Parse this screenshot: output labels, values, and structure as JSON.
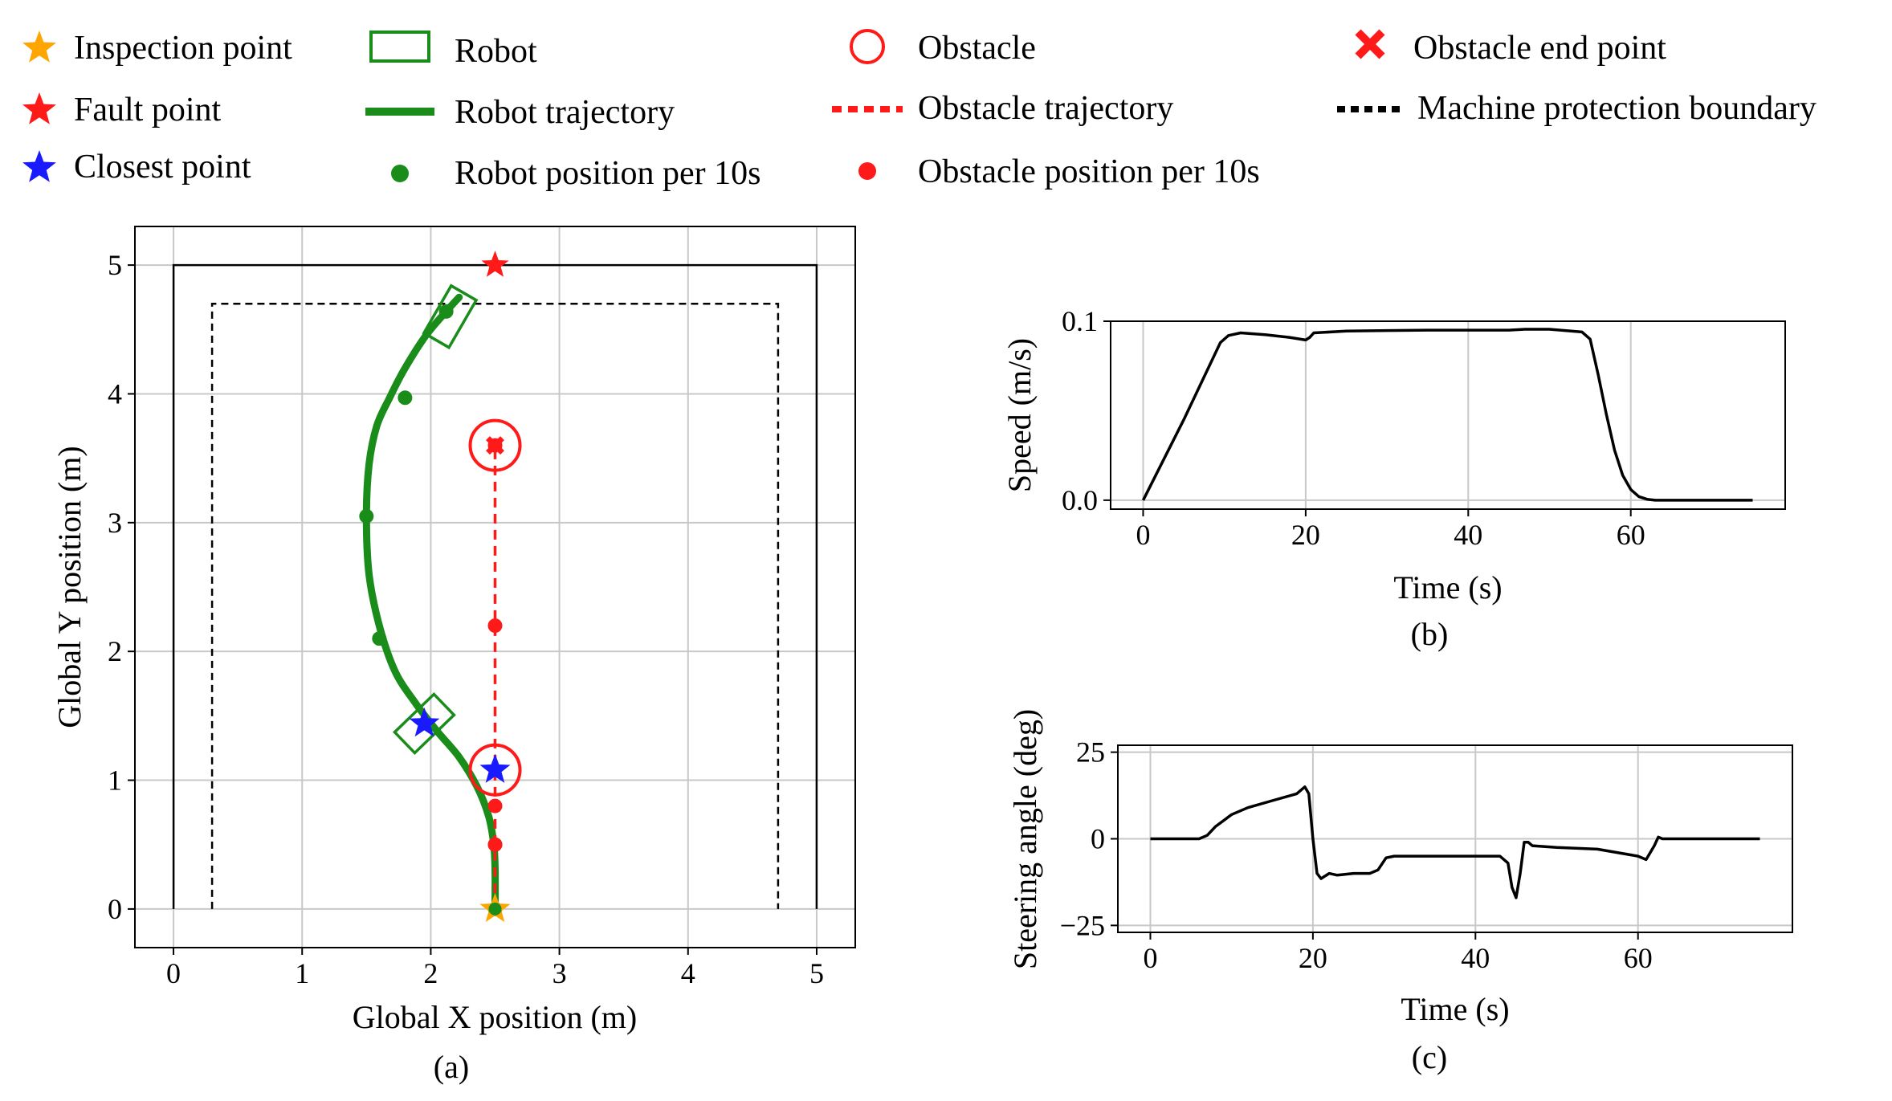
{
  "colors": {
    "robot": "#1a8c1a",
    "obstacle": "#ff1a1a",
    "inspection": "#ffa500",
    "closest": "#1a1aff",
    "fault": "#ff1a1a",
    "line": "#000000",
    "grid": "#c8c8c8"
  },
  "legend": {
    "inspection": "Inspection point",
    "fault": "Fault point",
    "closest": "Closest point",
    "robot": "Robot",
    "robot_traj": "Robot trajectory",
    "robot_pos": "Robot position per 10s",
    "obstacle": "Obstacle",
    "obstacle_traj": "Obstacle trajectory",
    "obstacle_pos": "Obstacle position per 10s",
    "obstacle_end": "Obstacle end point",
    "boundary": "Machine protection boundary"
  },
  "chart_data": [
    {
      "id": "a",
      "type": "scatter",
      "caption": "(a)",
      "xlabel": "Global X position (m)",
      "ylabel": "Global Y position (m)",
      "xlim": [
        -0.3,
        5.3
      ],
      "ylim": [
        -0.3,
        5.3
      ],
      "xticks": [
        0,
        1,
        2,
        3,
        4,
        5
      ],
      "yticks": [
        0,
        1,
        2,
        3,
        4,
        5
      ],
      "grid": true,
      "outer_boundary": [
        [
          0,
          0
        ],
        [
          0,
          5
        ],
        [
          5,
          5
        ],
        [
          5,
          0
        ]
      ],
      "protection_boundary": [
        [
          0.3,
          0
        ],
        [
          0.3,
          4.7
        ],
        [
          4.7,
          4.7
        ],
        [
          4.7,
          0
        ]
      ],
      "robot_trajectory": {
        "x": [
          2.5,
          2.5,
          2.49,
          2.45,
          2.36,
          2.22,
          2.05,
          1.88,
          1.72,
          1.6,
          1.52,
          1.5,
          1.52,
          1.58,
          1.68,
          1.8,
          1.96,
          2.12,
          2.22
        ],
        "y": [
          0.0,
          0.3,
          0.5,
          0.72,
          0.95,
          1.18,
          1.38,
          1.6,
          1.85,
          2.2,
          2.6,
          3.05,
          3.45,
          3.75,
          3.97,
          4.2,
          4.45,
          4.64,
          4.75
        ]
      },
      "robot_positions_10s": {
        "x": [
          2.5,
          2.5,
          1.6,
          1.5,
          1.8,
          2.12
        ],
        "y": [
          0.0,
          0.5,
          2.1,
          3.05,
          3.97,
          4.64
        ]
      },
      "robot_boxes": [
        {
          "x": 1.95,
          "y": 1.44,
          "angle_deg": 46
        },
        {
          "x": 2.15,
          "y": 4.6,
          "angle_deg": 30
        }
      ],
      "obstacle_trajectory": {
        "x": [
          2.5,
          2.5
        ],
        "y": [
          0.0,
          3.6
        ]
      },
      "obstacle_positions_10s": {
        "x": [
          2.5,
          2.5,
          2.5,
          2.5
        ],
        "y": [
          0.5,
          0.8,
          2.2,
          3.6
        ]
      },
      "obstacle_circles": [
        {
          "x": 2.5,
          "y": 1.08
        },
        {
          "x": 2.5,
          "y": 3.6
        }
      ],
      "obstacle_end": {
        "x": 2.5,
        "y": 3.6
      },
      "inspection_point": {
        "x": 2.5,
        "y": 0.0
      },
      "fault_point": {
        "x": 2.5,
        "y": 5.0
      },
      "closest_points": {
        "x": [
          1.95,
          2.5
        ],
        "y": [
          1.44,
          1.08
        ]
      }
    },
    {
      "id": "b",
      "type": "line",
      "caption": "(b)",
      "xlabel": "Time (s)",
      "ylabel": "Speed (m/s)",
      "xlim": [
        -4,
        79
      ],
      "ylim": [
        -0.005,
        0.1
      ],
      "xticks": [
        0,
        20,
        40,
        60
      ],
      "yticks": [
        0.0,
        0.1
      ],
      "ytick_labels": [
        "0.0",
        "0.1"
      ],
      "grid": true,
      "series": [
        {
          "name": "Speed",
          "x": [
            0,
            5,
            9.5,
            10.5,
            12,
            15,
            18,
            20,
            20.5,
            21,
            25,
            30,
            35,
            40,
            45,
            47,
            50,
            54,
            55,
            56,
            57,
            58,
            59,
            60,
            61,
            62,
            63,
            65,
            70,
            75
          ],
          "y": [
            0,
            0.045,
            0.088,
            0.092,
            0.0935,
            0.0925,
            0.091,
            0.0895,
            0.091,
            0.0935,
            0.0945,
            0.0948,
            0.095,
            0.095,
            0.095,
            0.0955,
            0.0955,
            0.094,
            0.09,
            0.07,
            0.048,
            0.028,
            0.014,
            0.006,
            0.002,
            0.0005,
            0,
            0,
            0,
            0
          ]
        }
      ]
    },
    {
      "id": "c",
      "type": "line",
      "caption": "(c)",
      "xlabel": "Time (s)",
      "ylabel": "Steering angle (deg)",
      "xlim": [
        -4,
        79
      ],
      "ylim": [
        -27,
        27
      ],
      "xticks": [
        0,
        20,
        40,
        60
      ],
      "yticks": [
        -25,
        0,
        25
      ],
      "ytick_labels": [
        "−25",
        "0",
        "25"
      ],
      "grid": true,
      "series": [
        {
          "name": "Steering angle",
          "x": [
            0,
            6,
            7,
            8,
            10,
            12,
            15,
            18,
            19,
            19.5,
            20,
            20.5,
            21,
            22,
            23,
            25,
            27,
            28,
            29,
            30,
            32,
            35,
            40,
            43,
            44,
            44.5,
            45,
            45.5,
            46,
            46.5,
            47,
            50,
            55,
            60,
            61,
            62,
            62.5,
            63,
            65,
            70,
            75
          ],
          "y": [
            0,
            0,
            1,
            3.5,
            7,
            9,
            11,
            13,
            15,
            13,
            0,
            -10,
            -11.5,
            -10,
            -10.5,
            -10,
            -10,
            -9,
            -5.5,
            -5,
            -5,
            -5,
            -5,
            -5,
            -7,
            -14,
            -17,
            -10,
            -1,
            -1,
            -2,
            -2.5,
            -3,
            -5,
            -6,
            -2,
            0.5,
            0,
            0,
            0,
            0
          ]
        }
      ]
    }
  ]
}
